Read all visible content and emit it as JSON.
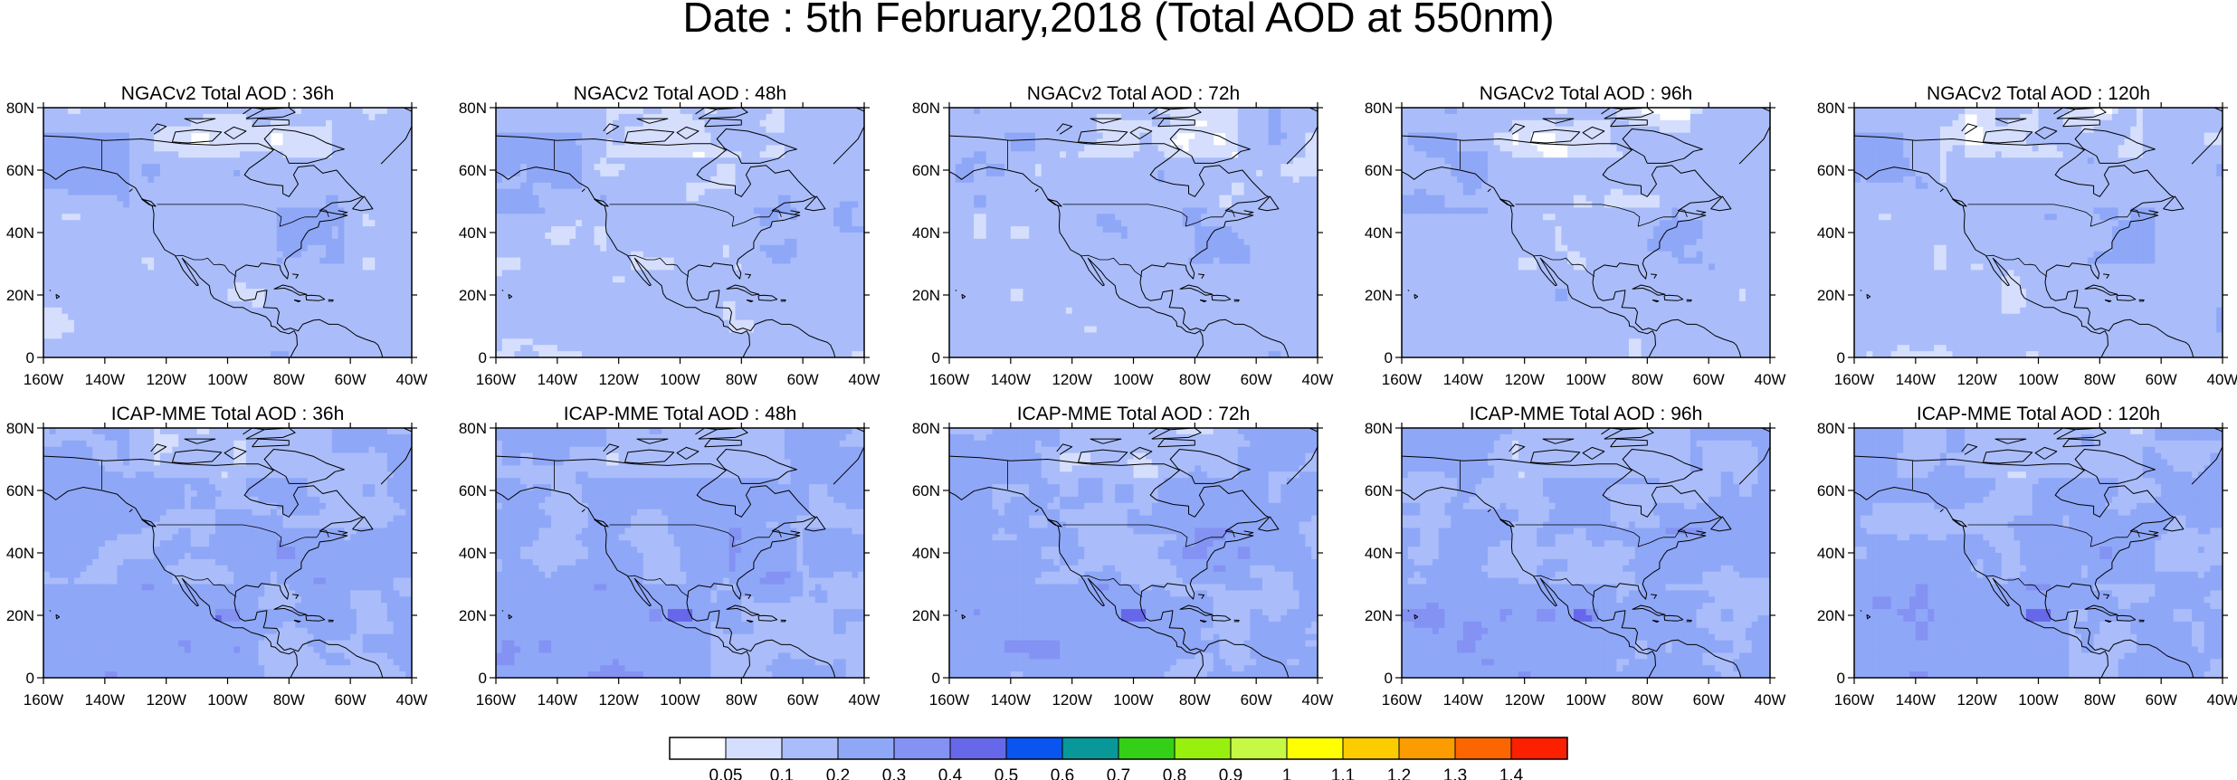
{
  "figure": {
    "title": "Date : 5th February,2018 (Total AOD at 550nm)"
  },
  "map_data": {
    "type": "filled-contour-map",
    "variable": "Total AOD at 550nm",
    "domain": {
      "lon": [
        -160,
        -40
      ],
      "lat": [
        0,
        80
      ]
    },
    "x_ticks": [
      "160W",
      "140W",
      "120W",
      "100W",
      "80W",
      "60W",
      "40W"
    ],
    "y_ticks": [
      "0",
      "20N",
      "40N",
      "60N",
      "80N"
    ],
    "panels": [
      {
        "title": "NGACv2 Total AOD : 36h",
        "model": "NGACv2",
        "lead": "36h",
        "row": 0
      },
      {
        "title": "NGACv2 Total AOD : 48h",
        "model": "NGACv2",
        "lead": "48h",
        "row": 0
      },
      {
        "title": "NGACv2 Total AOD : 72h",
        "model": "NGACv2",
        "lead": "72h",
        "row": 0
      },
      {
        "title": "NGACv2 Total AOD : 96h",
        "model": "NGACv2",
        "lead": "96h",
        "row": 0
      },
      {
        "title": "NGACv2 Total AOD : 120h",
        "model": "NGACv2",
        "lead": "120h",
        "row": 0
      },
      {
        "title": "ICAP-MME Total AOD : 36h",
        "model": "ICAP-MME",
        "lead": "36h",
        "row": 1
      },
      {
        "title": "ICAP-MME Total AOD : 48h",
        "model": "ICAP-MME",
        "lead": "48h",
        "row": 1
      },
      {
        "title": "ICAP-MME Total AOD : 72h",
        "model": "ICAP-MME",
        "lead": "72h",
        "row": 1
      },
      {
        "title": "ICAP-MME Total AOD : 96h",
        "model": "ICAP-MME",
        "lead": "96h",
        "row": 1
      },
      {
        "title": "ICAP-MME Total AOD : 120h",
        "model": "ICAP-MME",
        "lead": "120h",
        "row": 1
      }
    ]
  },
  "colorbar": {
    "labels": [
      "0.05",
      "0.1",
      "0.2",
      "0.3",
      "0.4",
      "0.5",
      "0.6",
      "0.7",
      "0.8",
      "0.9",
      "1",
      "1.1",
      "1.2",
      "1.3",
      "1.4"
    ],
    "colors": [
      "#ffffff",
      "#d5defc",
      "#aabdfa",
      "#8fa7f7",
      "#8392f3",
      "#6767ea",
      "#0a55f0",
      "#08989a",
      "#33d017",
      "#97f00d",
      "#c6f943",
      "#ffff00",
      "#fccc00",
      "#fb9c00",
      "#fb6600",
      "#fa2000"
    ]
  }
}
